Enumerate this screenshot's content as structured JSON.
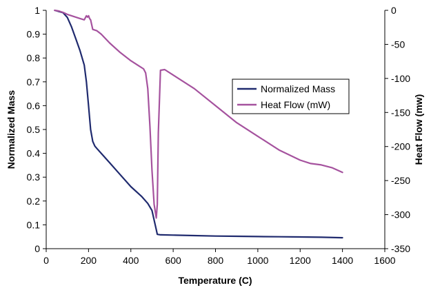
{
  "chart_data": {
    "type": "line",
    "title": "",
    "xlabel": "Temperature (C)",
    "ylabel_left": "Normalized Mass",
    "ylabel_right": "Heat Flow (mw)",
    "xlim": [
      0,
      1600
    ],
    "ylim_left": [
      0,
      1
    ],
    "ylim_right": [
      -350,
      0
    ],
    "x_ticks": [
      "0",
      "200",
      "400",
      "600",
      "800",
      "1000",
      "1200",
      "1400",
      "1600"
    ],
    "y_left_ticks": [
      "0",
      "0.1",
      "0.2",
      "0.3",
      "0.4",
      "0.5",
      "0.6",
      "0.7",
      "0.8",
      "0.9",
      "1"
    ],
    "y_right_ticks": [
      "0",
      "-50",
      "-100",
      "-150",
      "-200",
      "-250",
      "-300",
      "-350"
    ],
    "grid": false,
    "legend": {
      "placement": "right-center"
    },
    "series": [
      {
        "name": "Normalized Mass",
        "axis": "left",
        "color": "#1f2a6e",
        "x": [
          40,
          80,
          100,
          120,
          140,
          160,
          180,
          190,
          200,
          210,
          220,
          230,
          240,
          260,
          300,
          350,
          400,
          450,
          480,
          500,
          510,
          520,
          525,
          540,
          600,
          700,
          800,
          900,
          1000,
          1100,
          1200,
          1300,
          1400
        ],
        "y": [
          1.0,
          0.99,
          0.97,
          0.93,
          0.88,
          0.83,
          0.77,
          0.7,
          0.6,
          0.5,
          0.45,
          0.43,
          0.42,
          0.4,
          0.36,
          0.31,
          0.26,
          0.22,
          0.19,
          0.16,
          0.12,
          0.08,
          0.06,
          0.058,
          0.057,
          0.055,
          0.053,
          0.052,
          0.051,
          0.05,
          0.049,
          0.048,
          0.046
        ]
      },
      {
        "name": "Heat Flow (mW)",
        "axis": "right",
        "color": "#a5529e",
        "x": [
          40,
          60,
          80,
          100,
          130,
          160,
          180,
          190,
          195,
          200,
          205,
          210,
          220,
          230,
          240,
          260,
          300,
          350,
          400,
          440,
          460,
          470,
          480,
          490,
          500,
          510,
          520,
          525,
          530,
          540,
          560,
          600,
          700,
          800,
          900,
          1000,
          1100,
          1200,
          1250,
          1300,
          1350,
          1400
        ],
        "y": [
          0,
          -1,
          -3,
          -6,
          -9,
          -12,
          -14,
          -8,
          -10,
          -8,
          -12,
          -14,
          -28,
          -29,
          -30,
          -35,
          -48,
          -62,
          -74,
          -82,
          -86,
          -92,
          -115,
          -170,
          -235,
          -285,
          -305,
          -285,
          -180,
          -88,
          -87,
          -95,
          -115,
          -140,
          -165,
          -185,
          -205,
          -220,
          -225,
          -227,
          -231,
          -238
        ]
      }
    ]
  }
}
